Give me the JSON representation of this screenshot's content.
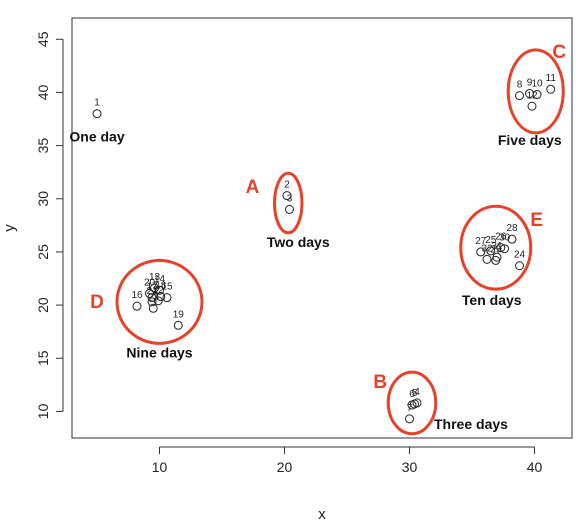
{
  "chart_data": {
    "type": "scatter",
    "xlabel": "x",
    "ylabel": "y",
    "xlim": [
      3,
      43
    ],
    "ylim": [
      7.5,
      47
    ],
    "x_ticks": [
      10,
      20,
      30,
      40
    ],
    "y_ticks": [
      10,
      15,
      20,
      25,
      30,
      35,
      40,
      45
    ],
    "grid": false,
    "points": [
      {
        "id": "1",
        "x": 5,
        "y": 38
      },
      {
        "id": "2",
        "x": 20.2,
        "y": 30.3
      },
      {
        "id": "3",
        "x": 20.4,
        "y": 29
      },
      {
        "id": "4",
        "x": 30.6,
        "y": 10.8
      },
      {
        "id": "5",
        "x": 30.4,
        "y": 10.7
      },
      {
        "id": "6",
        "x": 30.2,
        "y": 10.6
      },
      {
        "id": "7",
        "x": 30,
        "y": 9.3
      },
      {
        "id": "8",
        "x": 38.8,
        "y": 39.7
      },
      {
        "id": "9",
        "x": 39.6,
        "y": 39.9
      },
      {
        "id": "10",
        "x": 40.2,
        "y": 39.8
      },
      {
        "id": "11",
        "x": 41.3,
        "y": 40.3
      },
      {
        "id": "12",
        "x": 39.8,
        "y": 38.7
      },
      {
        "id": "13",
        "x": 9.6,
        "y": 21.6
      },
      {
        "id": "14",
        "x": 10,
        "y": 21.4
      },
      {
        "id": "15",
        "x": 10.6,
        "y": 20.7
      },
      {
        "id": "16",
        "x": 8.2,
        "y": 19.9
      },
      {
        "id": "17",
        "x": 9.4,
        "y": 20.7
      },
      {
        "id": "18",
        "x": 10.1,
        "y": 20.8
      },
      {
        "id": "19",
        "x": 11.5,
        "y": 18.1
      },
      {
        "id": "20",
        "x": 9.2,
        "y": 21.1
      },
      {
        "id": "21",
        "x": 9.4,
        "y": 20.3
      },
      {
        "id": "22",
        "x": 9.9,
        "y": 20.4
      },
      {
        "id": "23",
        "x": 9.5,
        "y": 19.7
      },
      {
        "id": "24",
        "x": 38.8,
        "y": 23.7
      },
      {
        "id": "25",
        "x": 36.5,
        "y": 25.1
      },
      {
        "id": "26",
        "x": 37.3,
        "y": 25.4
      },
      {
        "id": "27",
        "x": 35.7,
        "y": 25
      },
      {
        "id": "28",
        "x": 38.2,
        "y": 26.2
      },
      {
        "id": "29",
        "x": 36.9,
        "y": 24.2
      },
      {
        "id": "30",
        "x": 37.6,
        "y": 25.3
      },
      {
        "id": "31",
        "x": 37,
        "y": 24.5
      },
      {
        "id": "32",
        "x": 36.2,
        "y": 24.3
      }
    ],
    "annotations": [
      {
        "letter": "",
        "text": "One day",
        "cx": 5,
        "cy": 38
      },
      {
        "letter": "A",
        "text": "Two days",
        "cx": 20.3,
        "cy": 29.6,
        "rx": 1.1,
        "ry": 2.8
      },
      {
        "letter": "B",
        "text": "Three days",
        "cx": 30.2,
        "cy": 10.8,
        "rx": 1.9,
        "ry": 2.9
      },
      {
        "letter": "C",
        "text": "Five days",
        "cx": 40.1,
        "cy": 40.1,
        "rx": 2.2,
        "ry": 3.9
      },
      {
        "letter": "D",
        "text": "Nine days",
        "cx": 10,
        "cy": 20.3,
        "rx": 3.4,
        "ry": 3.9
      },
      {
        "letter": "E",
        "text": "Ten days",
        "cx": 36.9,
        "cy": 25.4,
        "rx": 2.8,
        "ry": 3.9
      }
    ],
    "annotation_color": "#e8412a",
    "marker_color": "#222222"
  }
}
